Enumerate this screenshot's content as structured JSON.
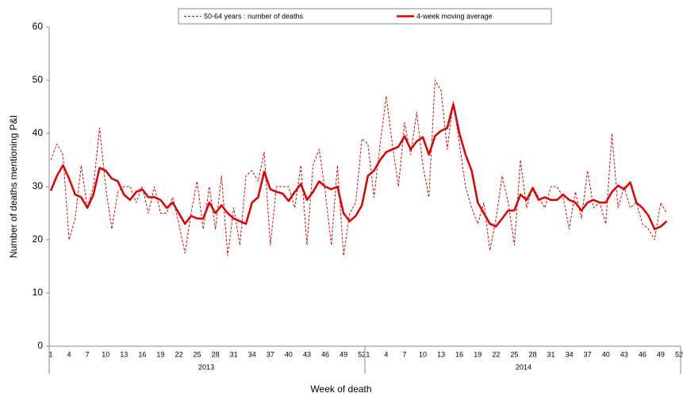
{
  "chart_data": {
    "type": "line",
    "x_label": "Week of death",
    "y_label": "Number of deaths mentioning P&I",
    "categories": [
      "1",
      null,
      null,
      "4",
      null,
      null,
      "7",
      null,
      null,
      "10",
      null,
      null,
      "13",
      null,
      null,
      "16",
      null,
      null,
      "19",
      null,
      null,
      "22",
      null,
      null,
      "25",
      null,
      null,
      "28",
      null,
      null,
      "31",
      null,
      null,
      "34",
      null,
      null,
      "37",
      null,
      null,
      "40",
      null,
      null,
      "43",
      null,
      null,
      "46",
      null,
      null,
      "49",
      null,
      null,
      "52",
      "1",
      null,
      null,
      "4",
      null,
      null,
      "7",
      null,
      null,
      "10",
      null,
      null,
      "13",
      null,
      null,
      "16",
      null,
      null,
      "19",
      null,
      null,
      "22",
      null,
      null,
      "25",
      null,
      null,
      "28",
      null,
      null,
      "31",
      null,
      null,
      "34",
      null,
      null,
      "37",
      null,
      null,
      "40",
      null,
      null,
      "43",
      null,
      null,
      "46",
      null,
      null,
      "49",
      null,
      null,
      "52"
    ],
    "groups": [
      {
        "label": "2013",
        "size": 52
      },
      {
        "label": "2014",
        "size": 52
      }
    ],
    "series": [
      {
        "name": "50-64 years : number of deaths",
        "color": "#e00000",
        "line_style": "dashed",
        "values": [
          35,
          38,
          36,
          20,
          24,
          34,
          26,
          30,
          41,
          30,
          22,
          29,
          30,
          30,
          27,
          30,
          25,
          30,
          25,
          25,
          28,
          23,
          17.5,
          25,
          31,
          22,
          30,
          22,
          32,
          17,
          26,
          19,
          32,
          33,
          31,
          36.5,
          19,
          30,
          30,
          30,
          26,
          34,
          19,
          34,
          37,
          29,
          19,
          34,
          17,
          25,
          27,
          39,
          38,
          28,
          38,
          47,
          38,
          30,
          42,
          36,
          44,
          34,
          28,
          50,
          48,
          37,
          46,
          38,
          30,
          26,
          23,
          27,
          18,
          24,
          32,
          27,
          19,
          35,
          26,
          30,
          28,
          26,
          30,
          30,
          28,
          22,
          29,
          24,
          33,
          26,
          27,
          23,
          40,
          26,
          30,
          26,
          27,
          23,
          22,
          20,
          27,
          25,
          null,
          null
        ]
      },
      {
        "name": "4-week moving average",
        "color": "#e00000",
        "line_style": "solid",
        "values": [
          29.2,
          32,
          34,
          31.5,
          28.5,
          28,
          26,
          28.5,
          33.5,
          33,
          31.5,
          31,
          28.5,
          27.5,
          29,
          29.5,
          28,
          28,
          27.5,
          26,
          27,
          25,
          23,
          24.5,
          24,
          24,
          27,
          25,
          26.5,
          25,
          24,
          23.5,
          23,
          27,
          28,
          32.8,
          29.5,
          29,
          28.7,
          27.3,
          29,
          30.5,
          27.5,
          29,
          31,
          30,
          29.5,
          30,
          25,
          23.5,
          24.5,
          26.5,
          32,
          33,
          35,
          36.5,
          37,
          37.5,
          39.5,
          37,
          38.5,
          39.3,
          36,
          39.5,
          40.5,
          41,
          45.5,
          40,
          36,
          33,
          27,
          25,
          23,
          22.5,
          24,
          25.5,
          25.5,
          28.5,
          27.5,
          29.7,
          27.5,
          28,
          27.5,
          27.5,
          28.5,
          27.5,
          27,
          25.5,
          27,
          27.5,
          27,
          27,
          29,
          30.2,
          29.5,
          30.8,
          27,
          26,
          24.5,
          22,
          22.5,
          23.5,
          null,
          null
        ]
      }
    ],
    "ylim": [
      0,
      60
    ],
    "yticks": [
      0,
      10,
      20,
      30,
      40,
      50,
      60
    ],
    "grid": false,
    "legend": "top"
  }
}
